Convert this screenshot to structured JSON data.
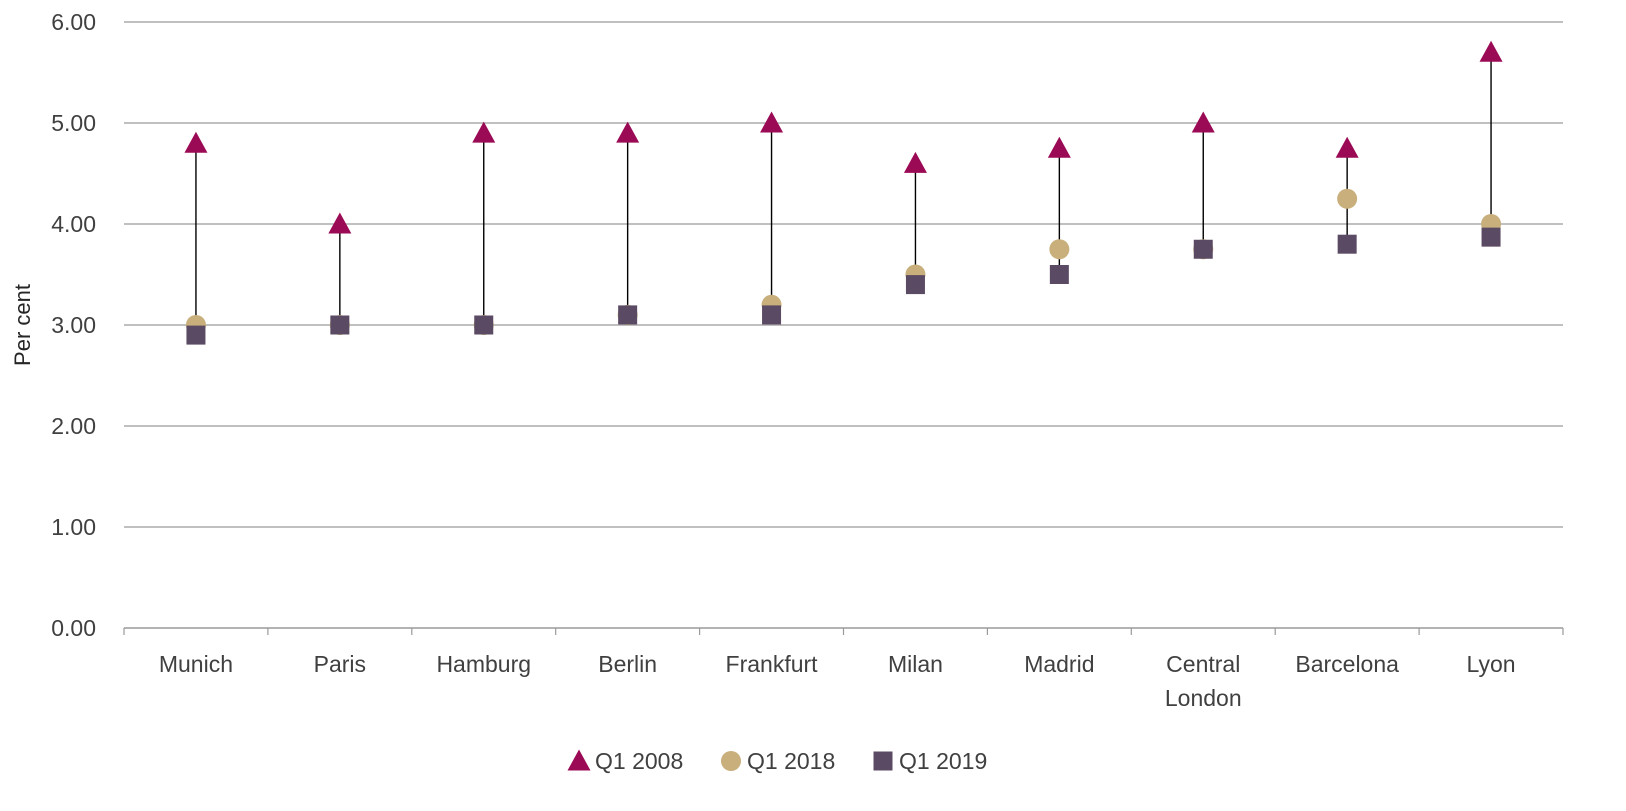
{
  "chart_data": {
    "type": "scatter",
    "ylabel": "Per cent",
    "ylim": [
      0,
      6
    ],
    "yticks": [
      "0.00",
      "1.00",
      "2.00",
      "3.00",
      "4.00",
      "5.00",
      "6.00"
    ],
    "grid": true,
    "legend_position": "bottom",
    "categories": [
      [
        "Munich"
      ],
      [
        "Paris"
      ],
      [
        "Hamburg"
      ],
      [
        "Berlin"
      ],
      [
        "Frankfurt"
      ],
      [
        "Milan"
      ],
      [
        "Madrid"
      ],
      [
        "Central",
        "London"
      ],
      [
        "Barcelona"
      ],
      [
        "Lyon"
      ]
    ],
    "series": [
      {
        "name": "Q1 2008",
        "marker": "triangle",
        "color": "#9B0A55",
        "values": [
          4.8,
          4.0,
          4.9,
          4.9,
          5.0,
          4.6,
          4.75,
          5.0,
          4.75,
          5.7
        ]
      },
      {
        "name": "Q1 2018",
        "marker": "circle",
        "color": "#C8AF7C",
        "values": [
          3.0,
          3.0,
          3.0,
          3.1,
          3.2,
          3.5,
          3.75,
          3.75,
          4.25,
          4.0
        ]
      },
      {
        "name": "Q1 2019",
        "marker": "square",
        "color": "#5B4A63",
        "values": [
          2.9,
          3.0,
          3.0,
          3.1,
          3.1,
          3.4,
          3.5,
          3.75,
          3.8,
          3.87
        ]
      }
    ]
  }
}
